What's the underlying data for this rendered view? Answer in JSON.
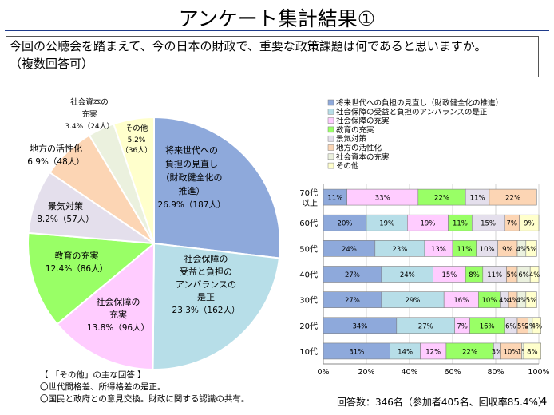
{
  "page": {
    "title": "アンケート集計結果①",
    "question_line1": "今回の公聴会を踏まえて、今の日本の財政で、重要な政策課題は何であると思いますか。",
    "question_line2": "（複数回答可）",
    "note_header": "【 「その他」の主な回答 】",
    "note_line1": "〇世代間格差、所得格差の是正。",
    "note_line2": "〇国民と政府との意見交換。財政に関する認識の共有。",
    "footer": "回答数：346名（参加者405名、回収率85.4%）",
    "page_number": "4"
  },
  "chart_data": [
    {
      "type": "pie",
      "slices": [
        {
          "label": [
            "将来世代への",
            "負担の見直し",
            "（財政健全化の",
            "推進）"
          ],
          "value": 26.9,
          "value_text": "26.9%（187人）",
          "color": "#8ea9db"
        },
        {
          "label": [
            "社会保障の",
            "受益と負担の",
            "アンバランスの",
            "是正"
          ],
          "value": 23.3,
          "value_text": "23.3%（162人）",
          "color": "#b7dee8"
        },
        {
          "label": [
            "社会保障の",
            "充実"
          ],
          "value": 13.8,
          "value_text": "13.8%（96人）",
          "color": "#ffccff"
        },
        {
          "label": [
            "教育の充実"
          ],
          "value": 12.4,
          "value_text": "12.4%（86人）",
          "color": "#99ff66"
        },
        {
          "label": [
            "景気対策"
          ],
          "value": 8.2,
          "value_text": "8.2%（57人）",
          "color": "#e4dfec"
        },
        {
          "label": [
            "地方の活性化"
          ],
          "value": 6.9,
          "value_text": "6.9%（48人）",
          "color": "#fcd5b4"
        },
        {
          "label": [
            "社会資本の",
            "充実"
          ],
          "value": 3.4,
          "value_text": "3.4%（24人）",
          "color": "#ebf1de"
        },
        {
          "label": [
            "その他"
          ],
          "value": 5.2,
          "value_text": "5.2%",
          "value_text2": "（36人）",
          "color": "#ffffcc"
        }
      ]
    },
    {
      "type": "bar",
      "orientation": "horizontal",
      "stacked": "percent",
      "categories": [
        "70代以上",
        "60代",
        "50代",
        "40代",
        "30代",
        "20代",
        "10代"
      ],
      "category_labels": [
        [
          "70代",
          "以上"
        ],
        [
          "60代"
        ],
        [
          "50代"
        ],
        [
          "40代"
        ],
        [
          "30代"
        ],
        [
          "20代"
        ],
        [
          "10代"
        ]
      ],
      "series": [
        {
          "name": "将来世代への負担の見直し（財政健全化の推進）",
          "color": "#8ea9db",
          "values": [
            11,
            20,
            24,
            27,
            27,
            34,
            31
          ]
        },
        {
          "name": "社会保障の受益と負担のアンバランスの是正",
          "color": "#b7dee8",
          "values": [
            0,
            19,
            23,
            24,
            29,
            27,
            14
          ]
        },
        {
          "name": "社会保障の充実",
          "color": "#ffccff",
          "values": [
            33,
            19,
            13,
            15,
            16,
            7,
            12
          ]
        },
        {
          "name": "教育の充実",
          "color": "#99ff66",
          "values": [
            22,
            11,
            11,
            8,
            10,
            16,
            22
          ]
        },
        {
          "name": "景気対策",
          "color": "#e4dfec",
          "values": [
            11,
            15,
            10,
            11,
            4,
            6,
            3
          ]
        },
        {
          "name": "地方の活性化",
          "color": "#fcd5b4",
          "values": [
            22,
            7,
            9,
            5,
            4,
            5,
            10
          ]
        },
        {
          "name": "社会資本の充実",
          "color": "#ebf1de",
          "values": [
            0,
            0,
            4,
            6,
            4,
            2,
            1
          ]
        },
        {
          "name": "その他",
          "color": "#ffffcc",
          "values": [
            0,
            9,
            5,
            4,
            5,
            4,
            8
          ]
        }
      ],
      "xticks": [
        "0%",
        "20%",
        "40%",
        "60%",
        "80%",
        "100%"
      ],
      "xlim": [
        0,
        100
      ],
      "legend": "top"
    }
  ]
}
